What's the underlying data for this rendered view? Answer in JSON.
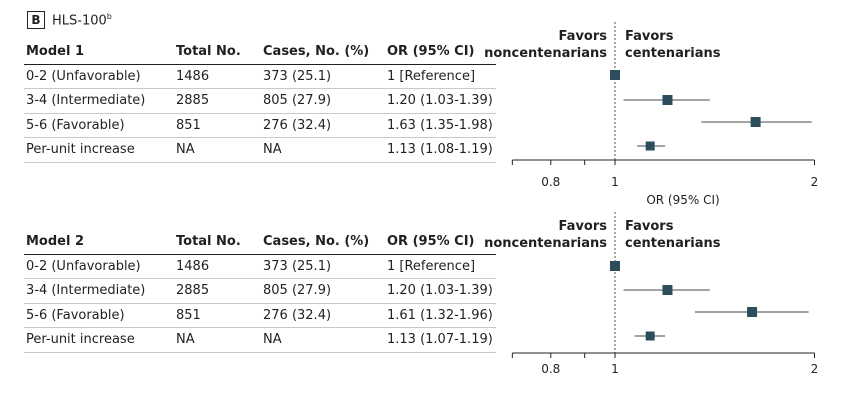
{
  "figure": {
    "panel": "B",
    "title": "HLS-100",
    "title_superscript": "b"
  },
  "columns": [
    "Total No.",
    "Cases, No. (%)",
    "OR (95% CI)"
  ],
  "favors_left": [
    "Favors",
    "noncentenarians"
  ],
  "favors_right": [
    "Favors",
    "centenarians"
  ],
  "chart_data": [
    {
      "type": "forest",
      "title": "Model 1",
      "xlabel": "OR (95% CI)",
      "xscale": "log",
      "xlim": [
        0.7,
        2.0
      ],
      "xticks": [
        "0.8",
        "1",
        "2"
      ],
      "reference_line": 1,
      "rows": [
        {
          "label": "0-2 (Unfavorable)",
          "total": "1486",
          "cases": "373 (25.1)",
          "or_text": "1 [Reference]",
          "or": 1.0,
          "lo": 1.0,
          "hi": 1.0
        },
        {
          "label": "3-4 (Intermediate)",
          "total": "2885",
          "cases": "805 (27.9)",
          "or_text": "1.20 (1.03-1.39)",
          "or": 1.2,
          "lo": 1.03,
          "hi": 1.39
        },
        {
          "label": "5-6 (Favorable)",
          "total": "851",
          "cases": "276 (32.4)",
          "or_text": "1.63 (1.35-1.98)",
          "or": 1.63,
          "lo": 1.35,
          "hi": 1.98
        },
        {
          "label": "Per-unit increase",
          "total": "NA",
          "cases": "NA",
          "or_text": "1.13 (1.08-1.19)",
          "or": 1.13,
          "lo": 1.08,
          "hi": 1.19
        }
      ]
    },
    {
      "type": "forest",
      "title": "Model 2",
      "xlabel": "",
      "xscale": "log",
      "xlim": [
        0.7,
        2.0
      ],
      "xticks": [
        "0.8",
        "1",
        "2"
      ],
      "reference_line": 1,
      "rows": [
        {
          "label": "0-2 (Unfavorable)",
          "total": "1486",
          "cases": "373 (25.1)",
          "or_text": "1 [Reference]",
          "or": 1.0,
          "lo": 1.0,
          "hi": 1.0
        },
        {
          "label": "3-4 (Intermediate)",
          "total": "2885",
          "cases": "805 (27.9)",
          "or_text": "1.20 (1.03-1.39)",
          "or": 1.2,
          "lo": 1.03,
          "hi": 1.39
        },
        {
          "label": "5-6 (Favorable)",
          "total": "851",
          "cases": "276 (32.4)",
          "or_text": "1.61 (1.32-1.96)",
          "or": 1.61,
          "lo": 1.32,
          "hi": 1.96
        },
        {
          "label": "Per-unit increase",
          "total": "NA",
          "cases": "NA",
          "or_text": "1.13 (1.07-1.19)",
          "or": 1.13,
          "lo": 1.07,
          "hi": 1.19
        }
      ]
    }
  ],
  "colors": {
    "marker": "#2e4d5c",
    "text": "#231f20",
    "rule": "#c9c9c9"
  }
}
